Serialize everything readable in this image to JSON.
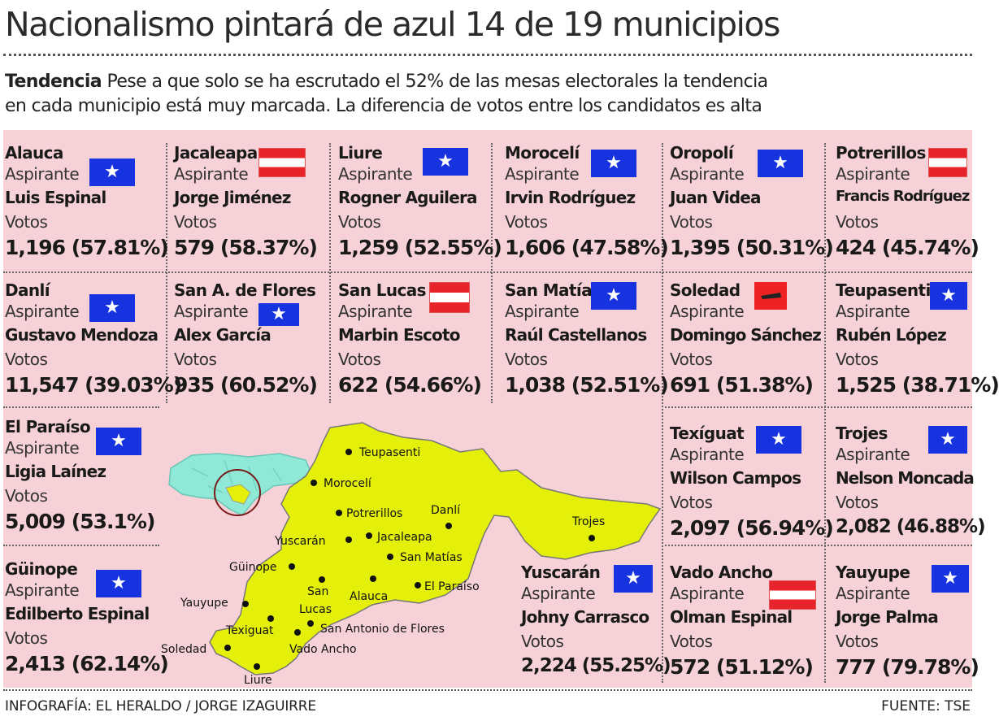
{
  "title": "Nacionalismo pintará de azul 14 de 19 municipios",
  "intro": {
    "lead": "Tendencia",
    "line1": "Pese a que solo se ha escrutado el 52% de las mesas electorales la tendencia",
    "line2": "en cada municipio está muy marcada. La diferencia de votos entre los candidatos es alta"
  },
  "labels": {
    "aspirante": "Aspirante",
    "votos": "Votos"
  },
  "colors": {
    "nacional": "#1733e0",
    "liberal": "#e8232a",
    "panel": "#f6d2d8",
    "map": "#e4f00a"
  },
  "cards": [
    {
      "municipio": "Alauca",
      "candidato": "Luis Espinal",
      "votos": "1,196 (57.81%)",
      "partido": "nacional"
    },
    {
      "municipio": "Jacaleapa",
      "candidato": "Jorge Jiménez",
      "votos": "579 (58.37%)",
      "partido": "liberal"
    },
    {
      "municipio": "Liure",
      "candidato": "Rogner Aguilera",
      "votos": "1,259 (52.55%)",
      "partido": "nacional"
    },
    {
      "municipio": "Morocelí",
      "candidato": "Irvin Rodríguez",
      "votos": "1,606 (47.58%)",
      "partido": "nacional"
    },
    {
      "municipio": "Oropolí",
      "candidato": "Juan Videa",
      "votos": "1,395 (50.31%)",
      "partido": "nacional"
    },
    {
      "municipio": "Potrerillos",
      "candidato": "Francis Rodríguez",
      "votos": "424 (45.74%)",
      "partido": "liberal"
    },
    {
      "municipio": "Danlí",
      "candidato": "Gustavo Mendoza",
      "votos": "11,547 (39.03%)",
      "partido": "nacional"
    },
    {
      "municipio": "San A. de Flores",
      "candidato": "Alex García",
      "votos": "935 (60.52%)",
      "partido": "nacional"
    },
    {
      "municipio": "San Lucas",
      "candidato": "Marbin Escoto",
      "votos": "622 (54.66%)",
      "partido": "liberal"
    },
    {
      "municipio": "San Matías",
      "candidato": "Raúl Castellanos",
      "votos": "1,038 (52.51%)",
      "partido": "nacional"
    },
    {
      "municipio": "Soledad",
      "candidato": "Domingo Sánchez",
      "votos": "691 (51.38%)",
      "partido": "otro"
    },
    {
      "municipio": "Teupasenti",
      "candidato": "Rubén López",
      "votos": "1,525 (38.71%)",
      "partido": "nacional"
    },
    {
      "municipio": "El Paraíso",
      "candidato": "Ligia Laínez",
      "votos": "5,009 (53.1%)",
      "partido": "nacional"
    },
    {
      "municipio": "Güinope",
      "candidato": "Edilberto Espinal",
      "votos": "2,413 (62.14%)",
      "partido": "nacional"
    },
    {
      "municipio": "Texíguat",
      "candidato": "Wilson Campos",
      "votos": "2,097 (56.94%)",
      "partido": "nacional"
    },
    {
      "municipio": "Trojes",
      "candidato": "Nelson Moncada",
      "votos": "2,082 (46.88%)",
      "partido": "nacional"
    },
    {
      "municipio": "Yuscarán",
      "candidato": "Johny Carrasco",
      "votos": "2,224 (55.25%)",
      "partido": "nacional"
    },
    {
      "municipio": "Vado Ancho",
      "candidato": "Olman Espinal",
      "votos": "572 (51.12%)",
      "partido": "liberal"
    },
    {
      "municipio": "Yauyupe",
      "candidato": "Jorge Palma",
      "votos": "777 (79.78%)",
      "partido": "nacional"
    }
  ],
  "map_labels": {
    "teupasenti": "Teupasenti",
    "moroceli": "Morocelí",
    "potrerillos": "Potrerillos",
    "danli": "Danlí",
    "trojes": "Trojes",
    "yuscaran": "Yuscarán",
    "jacaleapa": "Jacaleapa",
    "san_matias": "San Matías",
    "guinope": "Güinope",
    "el_paraiso": "El Paraíso",
    "alauca": "Alauca",
    "san": "San",
    "lucas": "Lucas",
    "yauyupe": "Yauyupe",
    "texiguat": "Texiguat",
    "san_antonio": "San Antonio de Flores",
    "soledad": "Soledad",
    "vado_ancho": "Vado Ancho",
    "liure": "Liure"
  },
  "footer": {
    "credit": "INFOGRAFÍA: EL HERALDO / JORGE IZAGUIRRE",
    "source": "FUENTE: TSE"
  }
}
